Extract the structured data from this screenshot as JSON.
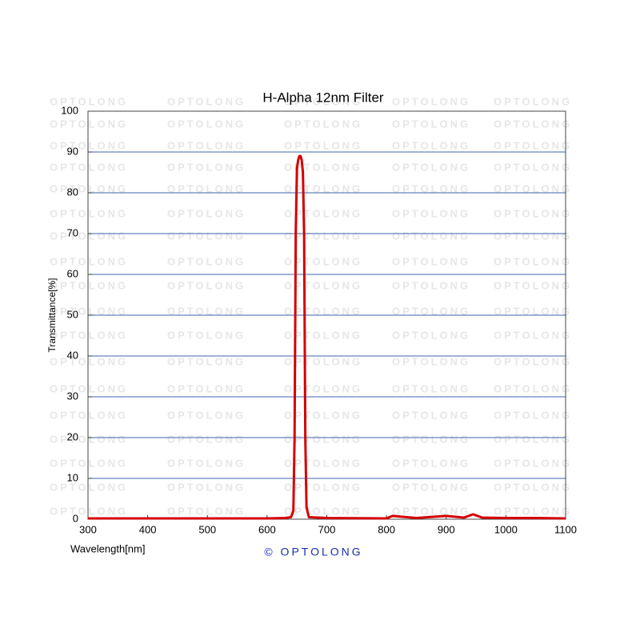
{
  "chart_data": {
    "type": "line",
    "title": "H-Alpha 12nm Filter",
    "xlabel": "Wavelength[nm]",
    "ylabel": "Transmittance[%]",
    "watermark": "OPTOLONG",
    "copyright": "© OPTOLONG",
    "x": [
      300,
      400,
      500,
      600,
      630,
      640,
      644,
      646,
      648,
      650,
      652,
      654,
      656,
      658,
      660,
      662,
      664,
      666,
      670,
      700,
      800,
      810,
      850,
      900,
      930,
      945,
      960,
      1000,
      1050,
      1100
    ],
    "series": [
      {
        "name": "H-Alpha 12nm Filter",
        "color": "#d40000",
        "values": [
          0.2,
          0.2,
          0.2,
          0.2,
          0.3,
          0.5,
          2,
          20,
          70,
          86,
          88,
          89,
          89,
          88,
          85,
          70,
          20,
          3,
          0.5,
          0.3,
          0.2,
          0.8,
          0.3,
          0.8,
          0.4,
          1.2,
          0.4,
          0.3,
          0.3,
          0.2
        ]
      }
    ],
    "xlim": [
      300,
      1100
    ],
    "xticks": [
      300,
      400,
      500,
      600,
      700,
      800,
      900,
      1000,
      1100
    ],
    "ylim": [
      0,
      100
    ],
    "yticks": [
      0,
      10,
      20,
      30,
      40,
      50,
      60,
      70,
      80,
      90,
      100
    ],
    "grid": true,
    "grid_color": "#3f66a8"
  }
}
